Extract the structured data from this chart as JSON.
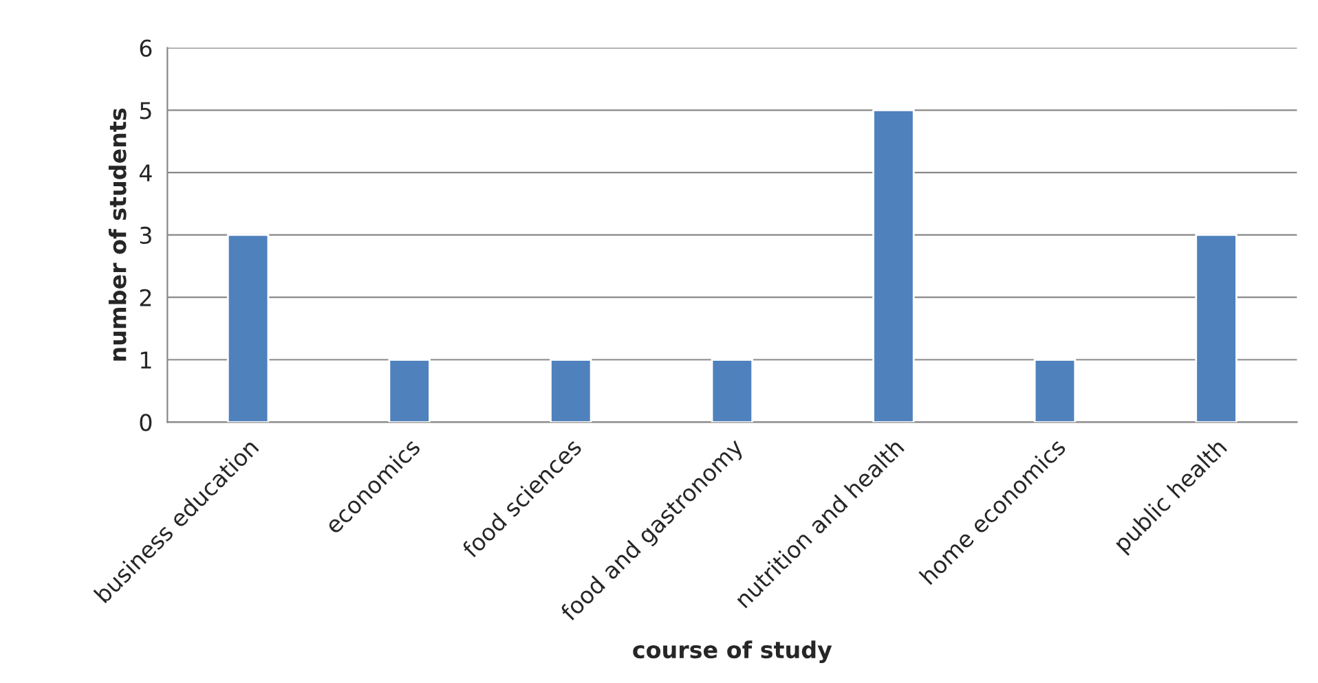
{
  "chart_data": {
    "type": "bar",
    "xlabel": "course of study",
    "ylabel": "number of students",
    "categories": [
      "business education",
      "economics",
      "food sciences",
      "food and gastronomy",
      "nutrition and health",
      "home economics",
      "public health"
    ],
    "values": [
      3,
      1,
      1,
      1,
      5,
      1,
      3
    ],
    "color": "#4f81bd",
    "ylim": [
      0,
      6
    ],
    "yticks": [
      0,
      1,
      2,
      3,
      4,
      5,
      6
    ],
    "grid": "y",
    "legend": false
  }
}
